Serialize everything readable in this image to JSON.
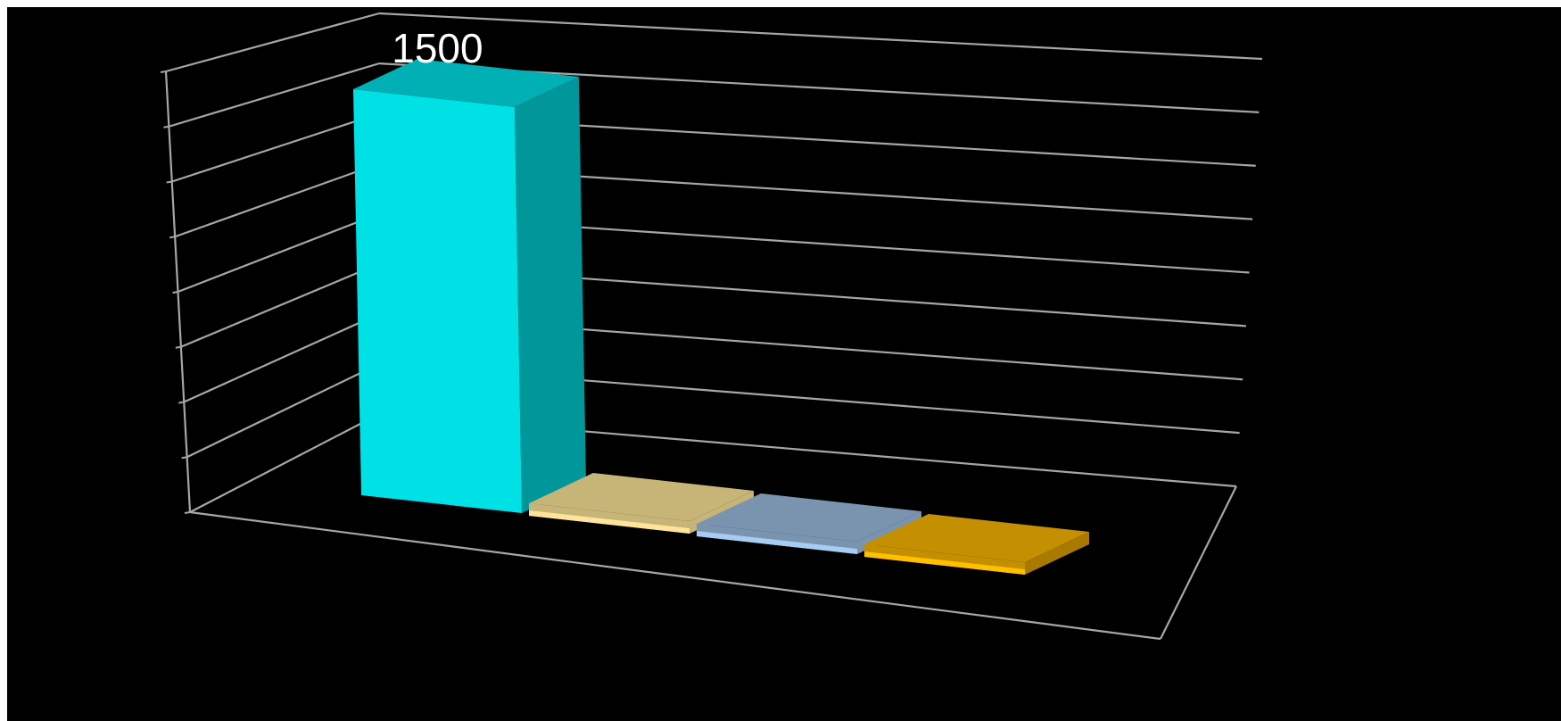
{
  "chart_data": {
    "type": "bar",
    "categories": [
      "",
      "",
      "",
      ""
    ],
    "values": [
      1500,
      15,
      15,
      15
    ],
    "data_labels": [
      "1500",
      "",
      "",
      ""
    ],
    "title": "",
    "xlabel": "",
    "ylabel": "",
    "ylim": [
      0,
      1600
    ],
    "grid": true,
    "legend": "none",
    "colors": {
      "front": [
        "#00e1e6",
        "#c7b477",
        "#7a94b0",
        "#c48f00"
      ],
      "side": [
        "#00969a",
        "#c7b477",
        "#7a94b0",
        "#a87a00"
      ],
      "top": [
        "#00b0b4",
        "#c7b477",
        "#7a94b0",
        "#c48f00"
      ],
      "edge": [
        "#00e1e6",
        "#ffe39a",
        "#a6ccf2",
        "#ffc000"
      ],
      "background": "#000000",
      "grid": "#a6a6a6"
    }
  }
}
